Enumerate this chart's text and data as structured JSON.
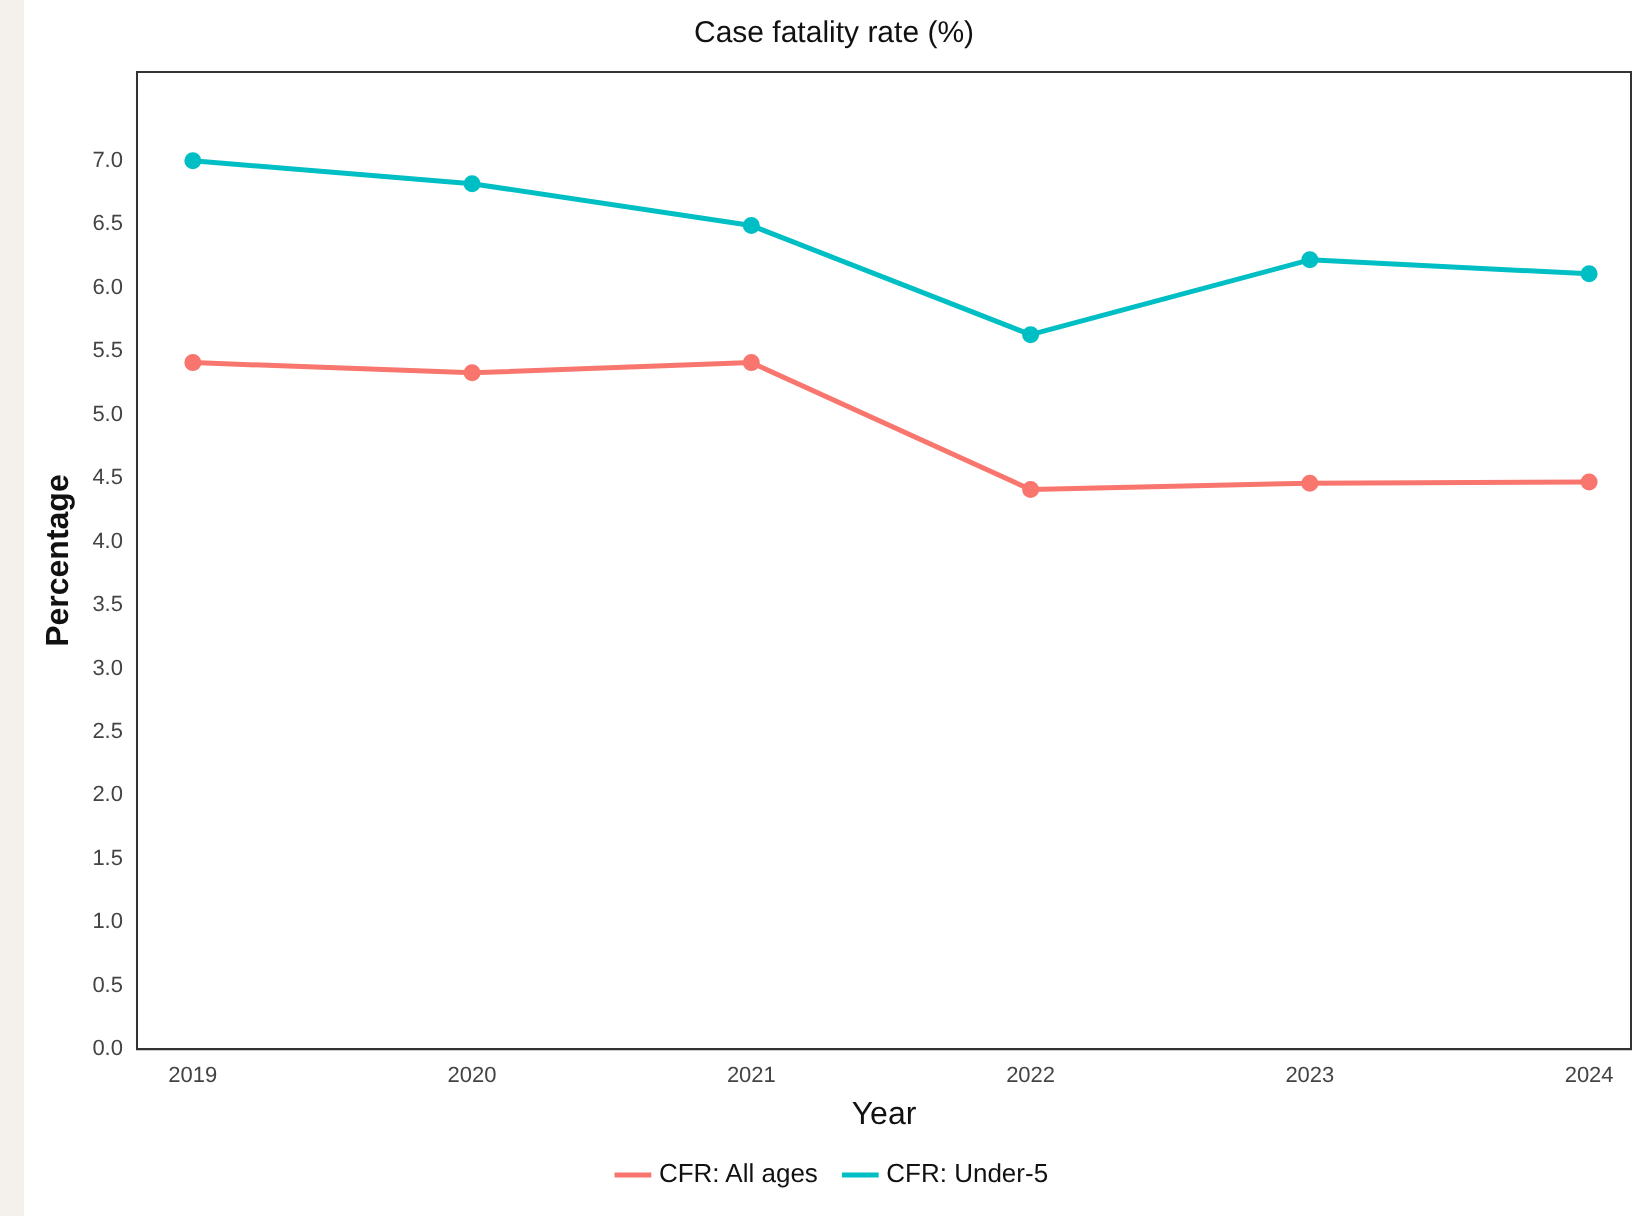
{
  "chart_data": {
    "type": "line",
    "title": "Case fatality rate (%)",
    "xlabel": "Year",
    "ylabel": "Percentage",
    "x": [
      2019,
      2020,
      2021,
      2022,
      2023,
      2024
    ],
    "series": [
      {
        "name": "CFR: All ages",
        "color": "#f8766d",
        "values": [
          5.41,
          5.33,
          5.41,
          4.41,
          4.46,
          4.47
        ]
      },
      {
        "name": "CFR: Under-5",
        "color": "#00bfc4",
        "values": [
          7.0,
          6.82,
          6.49,
          5.63,
          6.22,
          6.11
        ]
      }
    ],
    "xlim": [
      2018.8,
      2024.15
    ],
    "xticks": [
      2019,
      2020,
      2021,
      2022,
      2023,
      2024
    ],
    "ylim": [
      0,
      7.7
    ],
    "yticks": [
      {
        "value": 0,
        "label": "0.0"
      },
      {
        "value": 0.5,
        "label": "0.5"
      },
      {
        "value": 1,
        "label": "1.0"
      },
      {
        "value": 1.5,
        "label": "1.5"
      },
      {
        "value": 2,
        "label": "2.0"
      },
      {
        "value": 2.5,
        "label": "2.5"
      },
      {
        "value": 3,
        "label": "3.0"
      },
      {
        "value": 3.5,
        "label": "3.5"
      },
      {
        "value": 4,
        "label": "4.0"
      },
      {
        "value": 4.5,
        "label": "4.5"
      },
      {
        "value": 5,
        "label": "5.0"
      },
      {
        "value": 5.5,
        "label": "5.5"
      },
      {
        "value": 6,
        "label": "6.0"
      },
      {
        "value": 6.5,
        "label": "6.5"
      },
      {
        "value": 7,
        "label": "7.0"
      }
    ],
    "grid": false,
    "legend": "bottom",
    "marker": "circle",
    "line_style": "solid"
  }
}
